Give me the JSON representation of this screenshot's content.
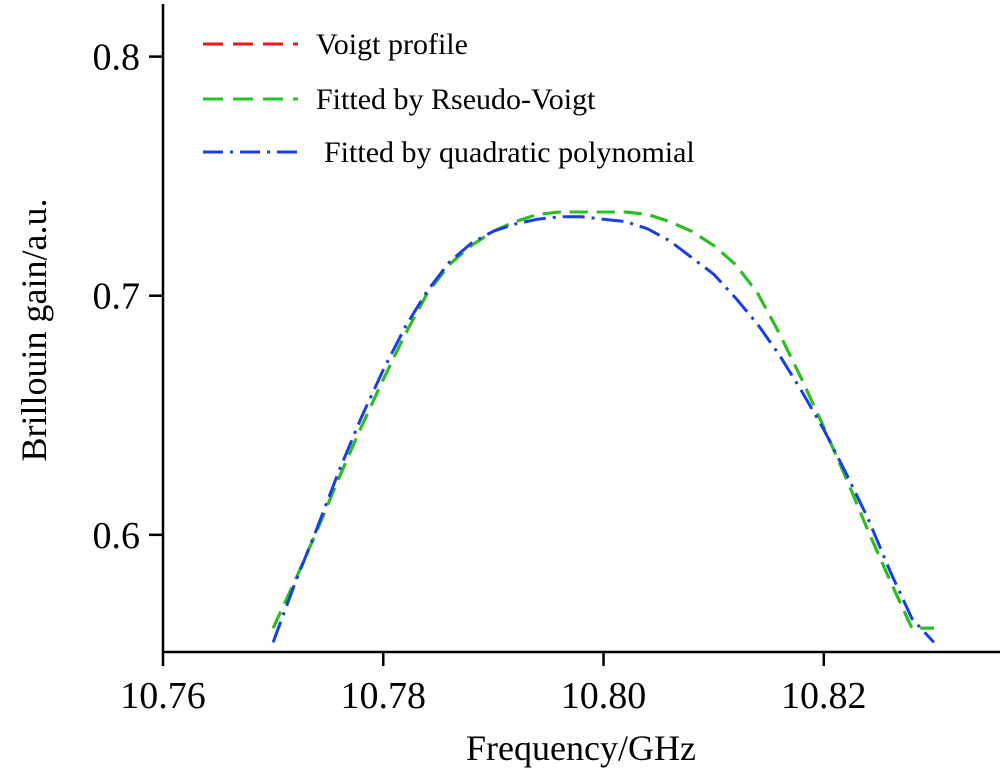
{
  "chart_data": {
    "type": "line",
    "title": "",
    "xlabel": "Frequency/GHz",
    "ylabel": "Brillouin gain/a.u.",
    "xlim": [
      10.76,
      10.836
    ],
    "ylim": [
      0.551,
      0.822
    ],
    "xticks": [
      10.76,
      10.78,
      10.8,
      10.82
    ],
    "xtick_labels": [
      "10.76",
      "10.78",
      "10.80",
      "10.82"
    ],
    "yticks": [
      0.6,
      0.7,
      0.8
    ],
    "ytick_labels": [
      "0.6",
      "0.7",
      "0.8"
    ],
    "grid": false,
    "legend_position": "top-left",
    "x": [
      10.77,
      10.772,
      10.774,
      10.776,
      10.778,
      10.78,
      10.782,
      10.784,
      10.786,
      10.788,
      10.79,
      10.792,
      10.794,
      10.796,
      10.798,
      10.8,
      10.802,
      10.804,
      10.806,
      10.808,
      10.81,
      10.812,
      10.814,
      10.816,
      10.818,
      10.82,
      10.822,
      10.824,
      10.826,
      10.828,
      10.83
    ],
    "series": [
      {
        "name": "Voigt profile",
        "color": "#e8191e",
        "style": "dashed",
        "values": [
          0.561,
          0.581,
          0.602,
          0.624,
          0.645,
          0.665,
          0.684,
          0.701,
          0.713,
          0.721,
          0.727,
          0.731,
          0.734,
          0.735,
          0.735,
          0.735,
          0.735,
          0.734,
          0.731,
          0.727,
          0.721,
          0.713,
          0.701,
          0.684,
          0.665,
          0.645,
          0.624,
          0.602,
          0.581,
          0.561,
          0.561
        ]
      },
      {
        "name": "Fitted by Rseudo-Voigt",
        "color": "#22c422",
        "style": "dashed",
        "values": [
          0.561,
          0.581,
          0.602,
          0.624,
          0.645,
          0.665,
          0.684,
          0.701,
          0.713,
          0.721,
          0.727,
          0.731,
          0.734,
          0.735,
          0.735,
          0.735,
          0.735,
          0.734,
          0.731,
          0.727,
          0.721,
          0.713,
          0.701,
          0.684,
          0.665,
          0.645,
          0.624,
          0.602,
          0.581,
          0.561,
          0.561
        ]
      },
      {
        "name": "Fitted by quadratic polynomial",
        "color": "#1a3fe0",
        "style": "dashdot",
        "values": [
          0.555,
          0.58,
          0.603,
          0.627,
          0.649,
          0.669,
          0.687,
          0.702,
          0.714,
          0.722,
          0.727,
          0.73,
          0.732,
          0.733,
          0.733,
          0.732,
          0.731,
          0.728,
          0.723,
          0.716,
          0.709,
          0.699,
          0.688,
          0.675,
          0.66,
          0.644,
          0.626,
          0.607,
          0.585,
          0.565,
          0.555
        ]
      }
    ]
  }
}
